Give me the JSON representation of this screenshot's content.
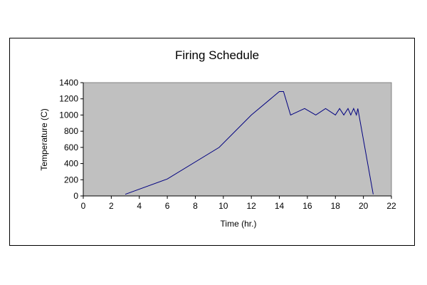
{
  "chart_data": {
    "type": "line",
    "title": "Firing Schedule",
    "xlabel": "Time (hr.)",
    "ylabel": "Temperature (C)",
    "xlim": [
      0,
      22
    ],
    "ylim": [
      0,
      1400
    ],
    "xticks": [
      0,
      2,
      4,
      6,
      8,
      10,
      12,
      14,
      16,
      18,
      20,
      22
    ],
    "yticks": [
      0,
      200,
      400,
      600,
      800,
      1000,
      1200,
      1400
    ],
    "grid": false,
    "legend": "none",
    "plot_background": "#c0c0c0",
    "series": [
      {
        "color": "#000080",
        "x": [
          3.0,
          6.0,
          9.7,
          12.0,
          14.0,
          14.3,
          14.8,
          15.8,
          16.6,
          17.3,
          18.0,
          18.3,
          18.6,
          18.9,
          19.1,
          19.3,
          19.5,
          19.6,
          20.7
        ],
        "y": [
          20,
          210,
          600,
          1000,
          1290,
          1290,
          1000,
          1080,
          1000,
          1080,
          1000,
          1080,
          1000,
          1080,
          1000,
          1080,
          1000,
          1080,
          20
        ]
      }
    ]
  }
}
